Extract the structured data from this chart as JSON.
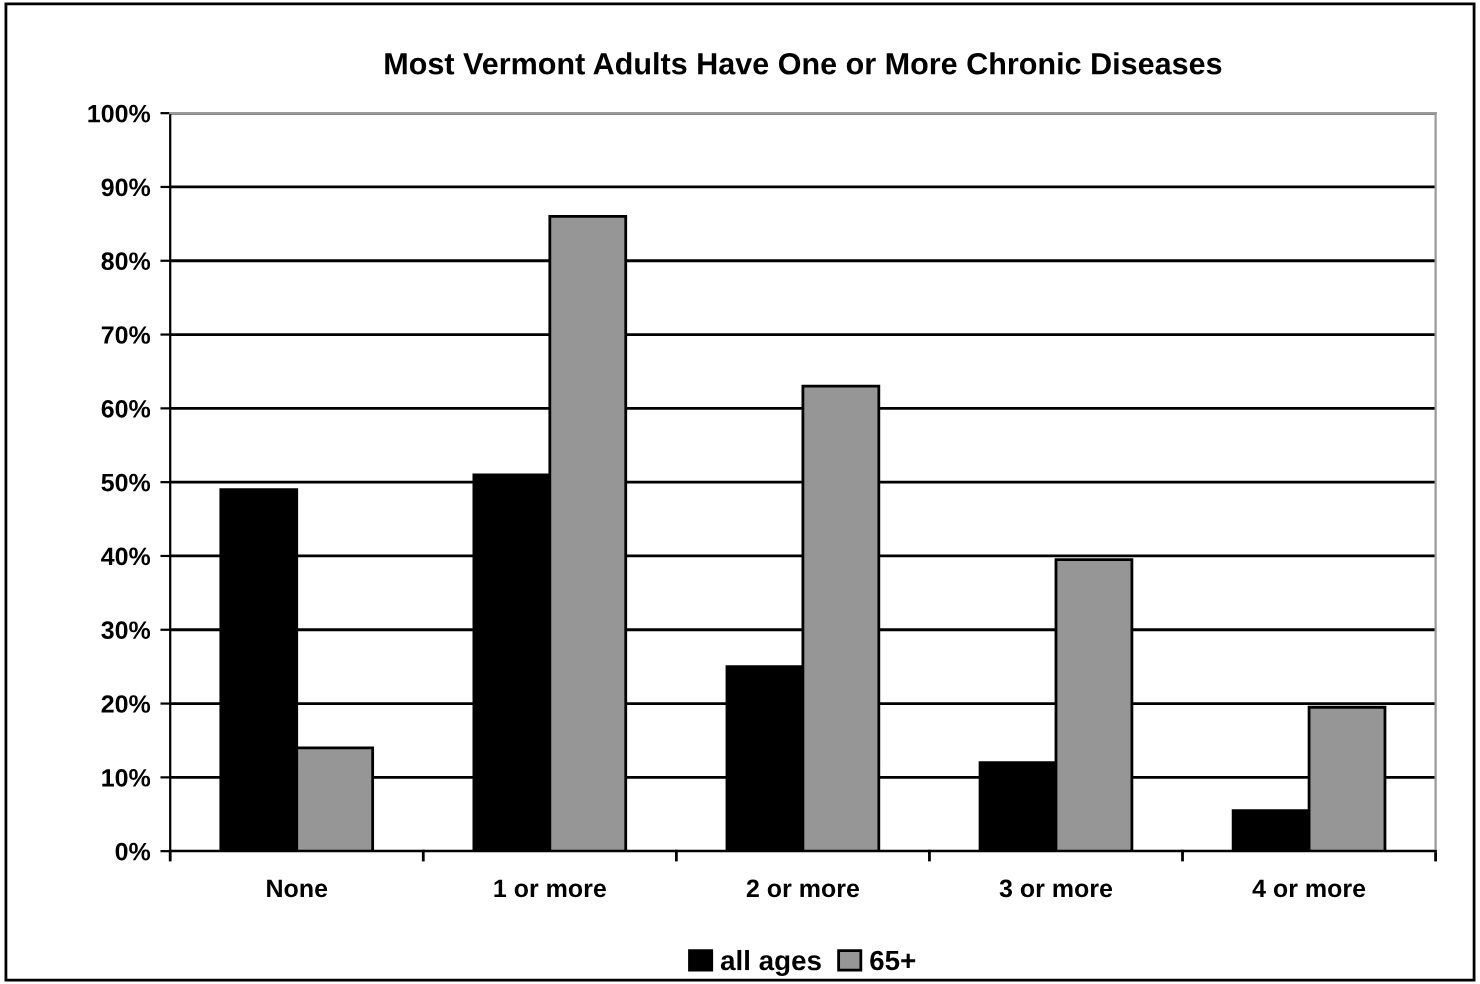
{
  "chart_data": {
    "type": "bar",
    "title": "Most Vermont Adults Have One or More Chronic Diseases",
    "categories": [
      "None",
      "1 or more",
      "2 or more",
      "3 or more",
      "4 or more"
    ],
    "series": [
      {
        "name": "all ages",
        "color": "#000000",
        "values": [
          49,
          51,
          25,
          12,
          5.5
        ]
      },
      {
        "name": "65+",
        "color": "#969696",
        "values": [
          14,
          86,
          63,
          39.5,
          19.5
        ]
      }
    ],
    "ylim": [
      0,
      100
    ],
    "yticks": [
      {
        "value": 0,
        "label": "0%"
      },
      {
        "value": 10,
        "label": "10%"
      },
      {
        "value": 20,
        "label": "20%"
      },
      {
        "value": 30,
        "label": "30%"
      },
      {
        "value": 40,
        "label": "40%"
      },
      {
        "value": 50,
        "label": "50%"
      },
      {
        "value": 60,
        "label": "60%"
      },
      {
        "value": 70,
        "label": "70%"
      },
      {
        "value": 80,
        "label": "80%"
      },
      {
        "value": 90,
        "label": "90%"
      },
      {
        "value": 100,
        "label": "100%"
      }
    ],
    "grid": "y",
    "legend": "bottom"
  }
}
